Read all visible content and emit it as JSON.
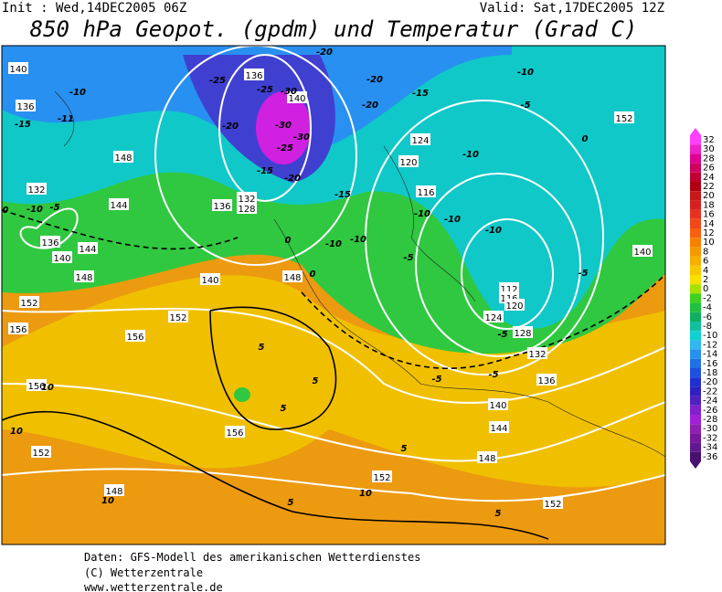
{
  "header": {
    "init": "Init : Wed,14DEC2005 06Z",
    "valid": "Valid: Sat,17DEC2005 12Z",
    "title": "850 hPa Geopot. (gpdm) und Temperatur (Grad C)"
  },
  "map": {
    "geopotential_labels": [
      "140",
      "136",
      "136",
      "140",
      "148",
      "144",
      "132",
      "136",
      "140",
      "144",
      "148",
      "152",
      "156",
      "132",
      "136",
      "140",
      "148",
      "152",
      "156",
      "156",
      "152",
      "148",
      "128",
      "124",
      "120",
      "116",
      "112",
      "116",
      "120",
      "124",
      "128",
      "132",
      "136",
      "140",
      "144",
      "148",
      "152",
      "152",
      "156",
      "152",
      "140"
    ],
    "temperature_labels": [
      "-10",
      "-15",
      "-11",
      "-10",
      "-5",
      "-25",
      "-25",
      "-30",
      "-20",
      "-30",
      "-30",
      "-25",
      "-20",
      "-15",
      "-20",
      "-20",
      "-15",
      "-10",
      "-15",
      "-10",
      "-10",
      "-10",
      "-10",
      "-5",
      "-5",
      "-5",
      "-5",
      "0",
      "0",
      "0",
      "0",
      "5",
      "5",
      "5",
      "5",
      "5",
      "10",
      "10",
      "10",
      "10",
      "5",
      "-10",
      "-5",
      "-5",
      "-20",
      "-10"
    ]
  },
  "legend": {
    "labels": [
      "32",
      "30",
      "28",
      "26",
      "24",
      "22",
      "20",
      "18",
      "16",
      "14",
      "12",
      "10",
      "8",
      "6",
      "4",
      "2",
      "0",
      "-2",
      "-4",
      "-6",
      "-8",
      "-10",
      "-12",
      "-14",
      "-16",
      "-18",
      "-20",
      "-22",
      "-24",
      "-26",
      "-28",
      "-30",
      "-32",
      "-34",
      "-36"
    ]
  },
  "footer": {
    "lines": [
      "Daten: GFS-Modell des amerikanischen Wetterdienstes",
      "(C) Wetterzentrale",
      "www.wetterzentrale.de"
    ]
  }
}
